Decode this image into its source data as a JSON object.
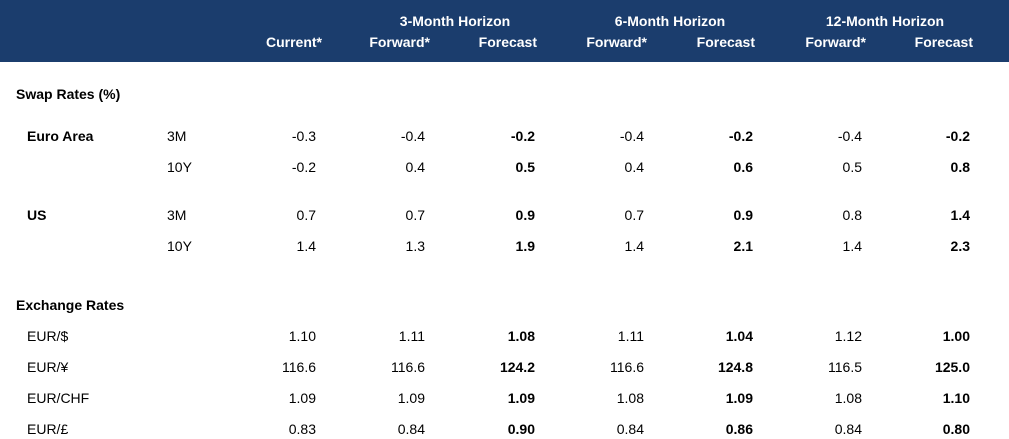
{
  "header": {
    "current": "Current*",
    "horizons": [
      {
        "title": "3-Month Horizon",
        "forward": "Forward*",
        "forecast": "Forecast"
      },
      {
        "title": "6-Month Horizon",
        "forward": "Forward*",
        "forecast": "Forecast"
      },
      {
        "title": "12-Month Horizon",
        "forward": "Forward*",
        "forecast": "Forecast"
      }
    ]
  },
  "swap": {
    "section_title": "Swap Rates (%)",
    "euro_area": {
      "label": "Euro Area",
      "rows": [
        {
          "tenor": "3M",
          "values": [
            "-0.3",
            "-0.4",
            "-0.2",
            "-0.4",
            "-0.2",
            "-0.4",
            "-0.2"
          ]
        },
        {
          "tenor": "10Y",
          "values": [
            "-0.2",
            "0.4",
            "0.5",
            "0.4",
            "0.6",
            "0.5",
            "0.8"
          ]
        }
      ]
    },
    "us": {
      "label": "US",
      "rows": [
        {
          "tenor": "3M",
          "values": [
            "0.7",
            "0.7",
            "0.9",
            "0.7",
            "0.9",
            "0.8",
            "1.4"
          ]
        },
        {
          "tenor": "10Y",
          "values": [
            "1.4",
            "1.3",
            "1.9",
            "1.4",
            "2.1",
            "1.4",
            "2.3"
          ]
        }
      ]
    }
  },
  "fx": {
    "section_title": "Exchange Rates",
    "rows": [
      {
        "pair": "EUR/$",
        "values": [
          "1.10",
          "1.11",
          "1.08",
          "1.11",
          "1.04",
          "1.12",
          "1.00"
        ]
      },
      {
        "pair": "EUR/¥",
        "values": [
          "116.6",
          "116.6",
          "124.2",
          "116.6",
          "124.8",
          "116.5",
          "125.0"
        ]
      },
      {
        "pair": "EUR/CHF",
        "values": [
          "1.09",
          "1.09",
          "1.09",
          "1.08",
          "1.09",
          "1.08",
          "1.10"
        ]
      },
      {
        "pair": "EUR/£",
        "values": [
          "0.83",
          "0.84",
          "0.90",
          "0.84",
          "0.86",
          "0.84",
          "0.80"
        ]
      }
    ]
  }
}
